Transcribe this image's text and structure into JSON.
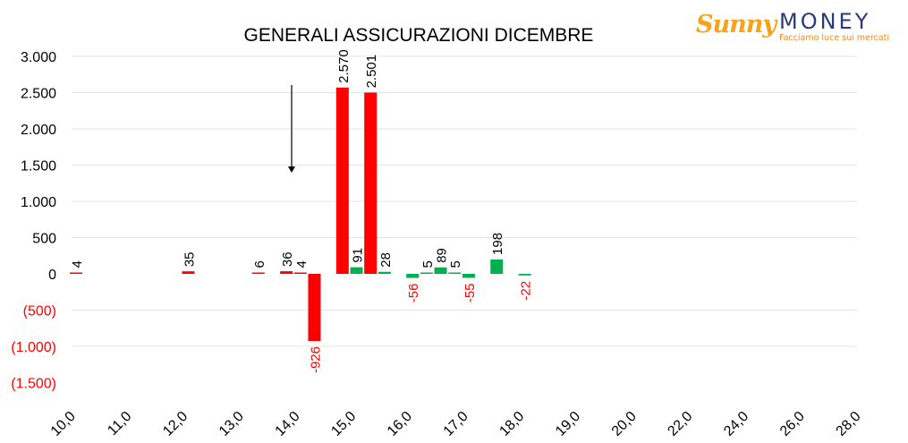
{
  "logo": {
    "word1": "Sunny",
    "word2": "MONEY",
    "tagline": "Facciamo luce sui mercati"
  },
  "chart_data": {
    "type": "bar",
    "title": "GENERALI ASSICURAZIONI DICEMBRE",
    "xlabel": "",
    "ylabel": "",
    "ylim": [
      -1500,
      3000
    ],
    "yticks": [
      3000,
      2500,
      2000,
      1500,
      1000,
      500,
      0,
      -500,
      -1000,
      -1500
    ],
    "ytick_labels": [
      "3.000",
      "2.500",
      "2.000",
      "1.500",
      "1.000",
      "500",
      "0",
      "(500)",
      "(1.000)",
      "(1.500)"
    ],
    "xtick_labels": [
      "10,0",
      "11,0",
      "12,0",
      "13,0",
      "14,0",
      "15,0",
      "16,0",
      "17,0",
      "18,0",
      "19,0",
      "20,0",
      "22,0",
      "24,0",
      "26,0",
      "28,0"
    ],
    "grid": true,
    "legend": "none",
    "annotation": "arrow pointing down near 14,0",
    "colors": {
      "put": "#ff0000",
      "call": "#00b050",
      "negative_label": "#ff0000",
      "label": "#000000"
    },
    "series": [
      {
        "values": [
          {
            "x": 10.0,
            "value": 4,
            "label": "4",
            "color": "put"
          },
          {
            "x": 12.0,
            "value": 35,
            "label": "35",
            "color": "put"
          },
          {
            "x": 13.25,
            "value": 6,
            "label": "6",
            "color": "put"
          },
          {
            "x": 13.75,
            "value": 36,
            "label": "36",
            "color": "put"
          },
          {
            "x": 14.0,
            "value": 4,
            "label": "4",
            "color": "put"
          },
          {
            "x": 14.25,
            "value": -926,
            "label": "-926",
            "color": "put"
          },
          {
            "x": 14.75,
            "value": 2570,
            "label": "2.570",
            "color": "put"
          },
          {
            "x": 15.0,
            "value": 91,
            "label": "91",
            "color": "call"
          },
          {
            "x": 15.25,
            "value": 2501,
            "label": "2.501",
            "color": "put"
          },
          {
            "x": 15.5,
            "value": 28,
            "label": "28",
            "color": "call"
          },
          {
            "x": 16.0,
            "value": -56,
            "label": "-56",
            "color": "call"
          },
          {
            "x": 16.25,
            "value": 5,
            "label": "5",
            "color": "call"
          },
          {
            "x": 16.5,
            "value": 89,
            "label": "89",
            "color": "call"
          },
          {
            "x": 16.75,
            "value": 5,
            "label": "5",
            "color": "call"
          },
          {
            "x": 17.0,
            "value": -55,
            "label": "-55",
            "color": "call"
          },
          {
            "x": 17.5,
            "value": 198,
            "label": "198",
            "color": "call"
          },
          {
            "x": 18.0,
            "value": -22,
            "label": "-22",
            "color": "call"
          }
        ]
      }
    ]
  }
}
